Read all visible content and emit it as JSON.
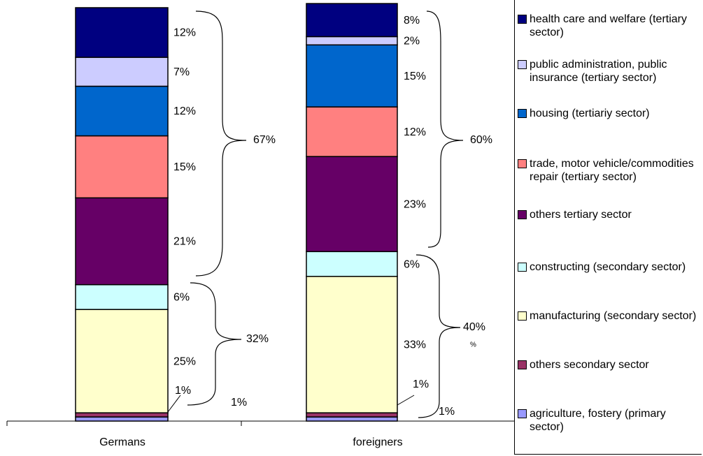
{
  "chart_data": {
    "type": "stacked_bar",
    "categories": [
      "Germans",
      "foreigners"
    ],
    "ylim": [
      0,
      100
    ],
    "series": [
      {
        "name": "agriculture, fostery (primary sector)",
        "color": "#9999ff",
        "values": [
          1,
          1
        ],
        "value_labels": [
          "1%",
          "1%"
        ]
      },
      {
        "name": "others secondary sector",
        "color": "#993366",
        "values": [
          1,
          1
        ],
        "value_labels": [
          "1%",
          "1%"
        ]
      },
      {
        "name": "manufacturing (secondary sector)",
        "color": "#ffffcc",
        "values": [
          25,
          33
        ],
        "value_labels": [
          "25%",
          "33%"
        ]
      },
      {
        "name": "constructing (secondary sector)",
        "color": "#ccffff",
        "values": [
          6,
          6
        ],
        "value_labels": [
          "6%",
          "6%"
        ]
      },
      {
        "name": "others tertiary sector",
        "color": "#660066",
        "values": [
          21,
          23
        ],
        "value_labels": [
          "21%",
          "23%"
        ]
      },
      {
        "name": "trade, motor vehicle/commodities repair (tertiary sector)",
        "color": "#ff8080",
        "values": [
          15,
          12
        ],
        "value_labels": [
          "15%",
          "12%"
        ]
      },
      {
        "name": "housing (tertiariy sector)",
        "color": "#0066cc",
        "values": [
          12,
          15
        ],
        "value_labels": [
          "12%",
          "15%"
        ]
      },
      {
        "name": "public administration, public insurance (tertiary sector)",
        "color": "#ccccff",
        "values": [
          7,
          2
        ],
        "value_labels": [
          "7%",
          "2%"
        ]
      },
      {
        "name": "health care and welfare (tertiary sector)",
        "color": "#000080",
        "values": [
          12,
          8
        ],
        "value_labels": [
          "12%",
          "8%"
        ]
      }
    ],
    "annotations": [
      "67%",
      "32%",
      "60%",
      "40%",
      "%"
    ]
  }
}
